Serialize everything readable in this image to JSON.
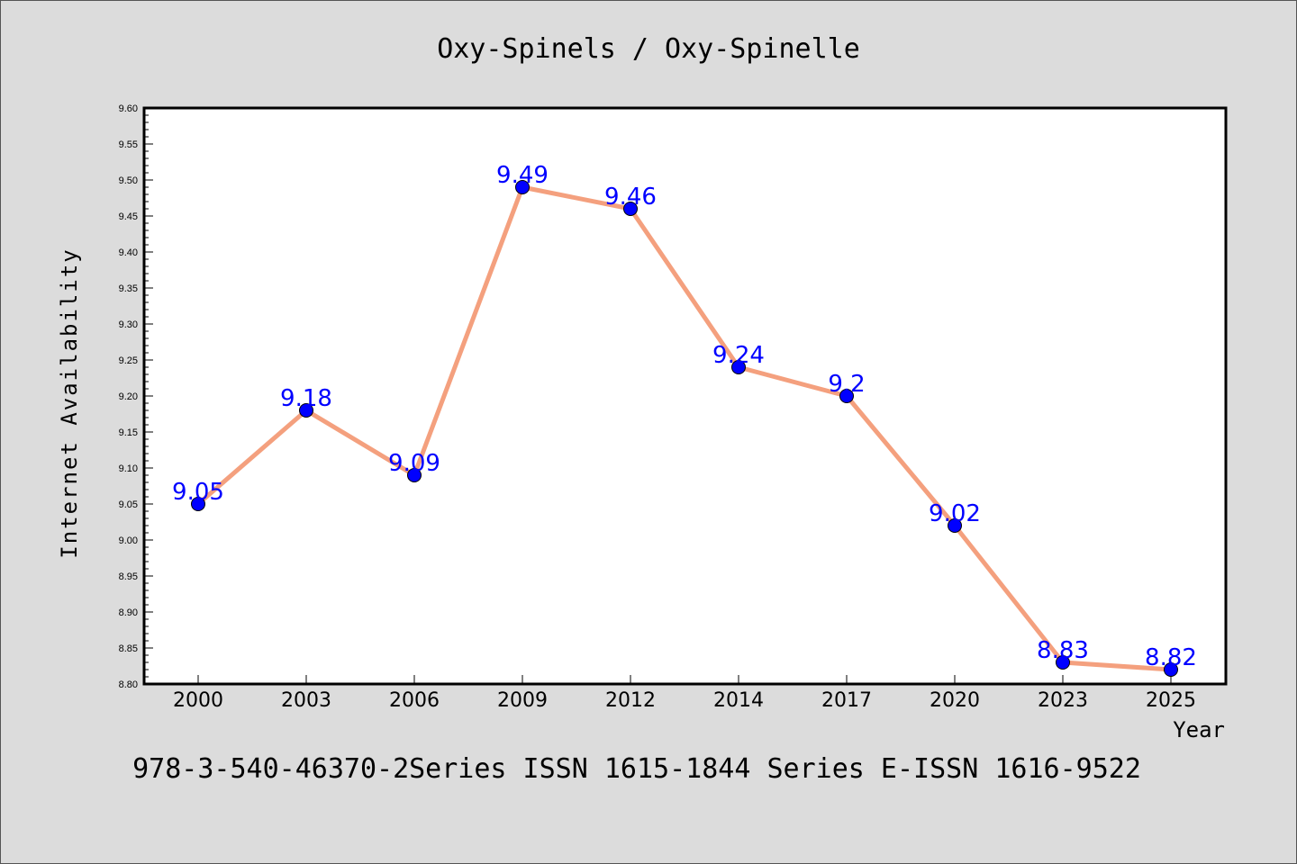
{
  "chart_data": {
    "type": "line",
    "title": "Oxy-Spinels / Oxy-Spinelle",
    "xlabel": "Year",
    "ylabel": "Internet Availability",
    "categories": [
      "2000",
      "2003",
      "2006",
      "2009",
      "2012",
      "2014",
      "2017",
      "2020",
      "2023",
      "2025"
    ],
    "values": [
      9.05,
      9.18,
      9.09,
      9.49,
      9.46,
      9.24,
      9.2,
      9.02,
      8.83,
      8.82
    ],
    "data_labels": [
      "9.05",
      "9.18",
      "9.09",
      "9.49",
      "9.46",
      "9.24",
      "9.2",
      "9.02",
      "8.83",
      "8.82"
    ],
    "ylim": [
      8.8,
      9.6
    ],
    "yticks": [
      "8.80",
      "8.85",
      "8.90",
      "8.95",
      "9.00",
      "9.05",
      "9.10",
      "9.15",
      "9.20",
      "9.25",
      "9.30",
      "9.35",
      "9.40",
      "9.45",
      "9.50",
      "9.55",
      "9.60"
    ],
    "grid": false,
    "legend": "none",
    "colors": {
      "line": "#f4a07e",
      "marker": "#0000ff",
      "marker_edge": "#000000",
      "data_label": "#0000ff",
      "plot_background": "#ffffff",
      "figure_background": "#dcdcdc"
    },
    "footer": "978-3-540-46370-2Series ISSN 1615-1844 Series E-ISSN 1616-9522"
  }
}
